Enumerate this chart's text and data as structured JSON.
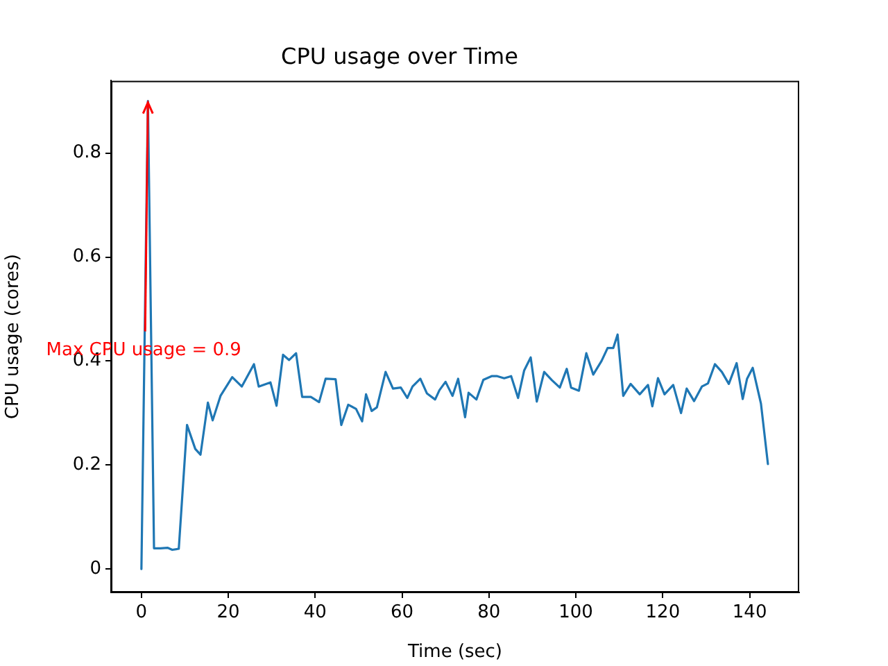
{
  "chart_data": {
    "type": "line",
    "title": "CPU usage over Time",
    "xlabel": "Time (sec)",
    "ylabel": "CPU usage (cores)",
    "xlim": [
      -7,
      151.4
    ],
    "xticks": [
      0,
      20,
      40,
      60,
      80,
      100,
      120,
      140
    ],
    "ylim": [
      -0.045,
      0.939
    ],
    "yticks": [
      0,
      0.2,
      0.4,
      0.6,
      0.8
    ],
    "grid": false,
    "legend": false,
    "marker": "none",
    "line_style": "solid",
    "annotations": [
      {
        "text": "Max CPU usage = 0.9",
        "x": 1.5,
        "y": 0.9
      }
    ],
    "series": [
      {
        "color": "#1f77b4",
        "x": [
          0,
          1.5,
          2.9,
          4.4,
          6.0,
          7.1,
          8.6,
          10.5,
          12.4,
          13.6,
          15.3,
          16.4,
          18.2,
          20.9,
          23.1,
          25.9,
          27,
          29.7,
          31.1,
          32.6,
          34,
          35.6,
          37,
          39,
          40.9,
          42.4,
          44.7,
          46,
          47.6,
          49.4,
          50.8,
          51.7,
          53,
          54.2,
          56.2,
          57.9,
          59.7,
          61.2,
          62.4,
          64.2,
          65.7,
          67.6,
          68.6,
          70,
          71.6,
          72.9,
          74.5,
          75.3,
          77.1,
          78.7,
          80.6,
          81.9,
          83.5,
          85.1,
          86.7,
          88.1,
          89.6,
          91,
          92.7,
          94.5,
          96.3,
          97.9,
          98.9,
          100.7,
          102.4,
          104,
          105.9,
          107.3,
          108.6,
          109.6,
          110.9,
          112.6,
          114.7,
          116.6,
          117.6,
          118.9,
          120.4,
          122.4,
          124.2,
          125.5,
          127.2,
          129,
          130.4,
          132,
          133.6,
          135.2,
          137,
          138.4,
          139.4,
          140.7,
          142.6,
          144.2
        ],
        "values": [
          0,
          0.9,
          0.04,
          0.04,
          0.041,
          0.037,
          0.039,
          0.277,
          0.231,
          0.22,
          0.32,
          0.286,
          0.333,
          0.369,
          0.351,
          0.394,
          0.351,
          0.359,
          0.314,
          0.412,
          0.402,
          0.415,
          0.331,
          0.331,
          0.321,
          0.366,
          0.365,
          0.277,
          0.316,
          0.308,
          0.284,
          0.336,
          0.304,
          0.311,
          0.379,
          0.347,
          0.349,
          0.329,
          0.351,
          0.366,
          0.338,
          0.326,
          0.344,
          0.36,
          0.333,
          0.366,
          0.292,
          0.339,
          0.326,
          0.364,
          0.371,
          0.371,
          0.367,
          0.371,
          0.329,
          0.382,
          0.407,
          0.322,
          0.379,
          0.363,
          0.349,
          0.385,
          0.349,
          0.343,
          0.415,
          0.374,
          0.4,
          0.425,
          0.425,
          0.451,
          0.333,
          0.356,
          0.336,
          0.354,
          0.313,
          0.367,
          0.336,
          0.354,
          0.3,
          0.347,
          0.323,
          0.351,
          0.357,
          0.394,
          0.379,
          0.356,
          0.396,
          0.327,
          0.366,
          0.387,
          0.318,
          0.202
        ]
      }
    ]
  }
}
